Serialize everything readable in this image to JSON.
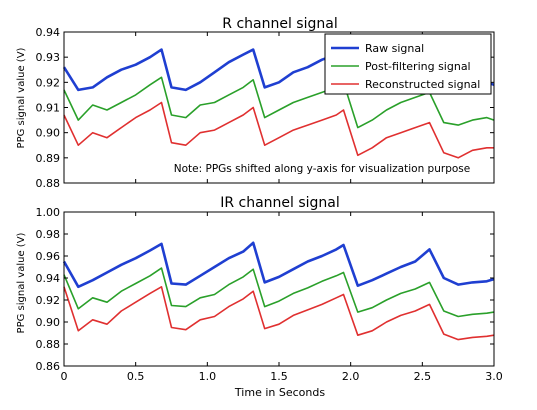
{
  "chart_data": [
    {
      "type": "line",
      "title": "R channel signal",
      "ylabel": "PPG signal value (V)",
      "xlabel": "",
      "xlim": [
        0,
        3.0
      ],
      "ylim": [
        0.88,
        0.94
      ],
      "yticks": [
        "0.88",
        "0.89",
        "0.90",
        "0.91",
        "0.92",
        "0.93",
        "0.94"
      ],
      "xticks": [],
      "grid": false,
      "legend_position": "top-right",
      "note": "Note: PPGs shifted along y-axis for visualization purpose",
      "x": [
        0.0,
        0.1,
        0.2,
        0.3,
        0.4,
        0.5,
        0.6,
        0.68,
        0.75,
        0.85,
        0.95,
        1.05,
        1.15,
        1.25,
        1.32,
        1.4,
        1.5,
        1.6,
        1.7,
        1.8,
        1.9,
        1.95,
        2.05,
        2.15,
        2.25,
        2.35,
        2.45,
        2.55,
        2.65,
        2.75,
        2.85,
        2.95,
        3.0
      ],
      "series": [
        {
          "name": "Raw signal",
          "color": "#1f3fd1",
          "values": [
            0.926,
            0.917,
            0.918,
            0.922,
            0.925,
            0.927,
            0.93,
            0.933,
            0.918,
            0.917,
            0.92,
            0.924,
            0.928,
            0.931,
            0.933,
            0.918,
            0.92,
            0.924,
            0.926,
            0.929,
            0.931,
            0.932,
            0.917,
            0.919,
            0.923,
            0.926,
            0.928,
            0.93,
            0.918,
            0.917,
            0.919,
            0.92,
            0.919
          ]
        },
        {
          "name": "Post-filtering signal",
          "color": "#2aa02a",
          "values": [
            0.917,
            0.905,
            0.911,
            0.909,
            0.912,
            0.915,
            0.919,
            0.922,
            0.907,
            0.906,
            0.911,
            0.912,
            0.915,
            0.918,
            0.921,
            0.906,
            0.909,
            0.912,
            0.914,
            0.916,
            0.918,
            0.92,
            0.902,
            0.905,
            0.909,
            0.912,
            0.914,
            0.916,
            0.904,
            0.903,
            0.905,
            0.906,
            0.905
          ]
        },
        {
          "name": "Reconstructed signal",
          "color": "#e03030",
          "values": [
            0.907,
            0.895,
            0.9,
            0.898,
            0.902,
            0.906,
            0.909,
            0.912,
            0.896,
            0.895,
            0.9,
            0.901,
            0.904,
            0.907,
            0.91,
            0.895,
            0.898,
            0.901,
            0.903,
            0.905,
            0.907,
            0.909,
            0.891,
            0.894,
            0.898,
            0.9,
            0.902,
            0.904,
            0.892,
            0.89,
            0.893,
            0.894,
            0.894
          ]
        }
      ]
    },
    {
      "type": "line",
      "title": "IR channel signal",
      "ylabel": "PPG signal value (V)",
      "xlabel": "Time in Seconds",
      "xlim": [
        0,
        3.0
      ],
      "ylim": [
        0.86,
        1.0
      ],
      "yticks": [
        "0.86",
        "0.88",
        "0.90",
        "0.92",
        "0.94",
        "0.96",
        "0.98",
        "1.00"
      ],
      "xticks": [
        "0",
        "0.5",
        "1.0",
        "1.5",
        "2.0",
        "2.5",
        "3.0"
      ],
      "grid": false,
      "x": [
        0.0,
        0.1,
        0.2,
        0.3,
        0.4,
        0.5,
        0.6,
        0.68,
        0.75,
        0.85,
        0.95,
        1.05,
        1.15,
        1.25,
        1.32,
        1.4,
        1.5,
        1.6,
        1.7,
        1.8,
        1.9,
        1.95,
        2.05,
        2.15,
        2.25,
        2.35,
        2.45,
        2.55,
        2.65,
        2.75,
        2.85,
        2.95,
        3.0
      ],
      "series": [
        {
          "name": "Raw signal",
          "color": "#1f3fd1",
          "values": [
            0.955,
            0.932,
            0.938,
            0.945,
            0.952,
            0.958,
            0.965,
            0.971,
            0.935,
            0.934,
            0.942,
            0.95,
            0.958,
            0.964,
            0.972,
            0.936,
            0.941,
            0.948,
            0.955,
            0.96,
            0.966,
            0.97,
            0.933,
            0.938,
            0.944,
            0.95,
            0.955,
            0.966,
            0.94,
            0.934,
            0.936,
            0.937,
            0.939
          ]
        },
        {
          "name": "Post-filtering signal",
          "color": "#2aa02a",
          "values": [
            0.943,
            0.912,
            0.922,
            0.918,
            0.928,
            0.935,
            0.942,
            0.949,
            0.915,
            0.914,
            0.922,
            0.925,
            0.934,
            0.941,
            0.948,
            0.914,
            0.919,
            0.926,
            0.931,
            0.937,
            0.942,
            0.945,
            0.909,
            0.913,
            0.92,
            0.926,
            0.93,
            0.936,
            0.91,
            0.905,
            0.907,
            0.908,
            0.909
          ]
        },
        {
          "name": "Reconstructed signal",
          "color": "#e03030",
          "values": [
            0.932,
            0.892,
            0.902,
            0.898,
            0.91,
            0.918,
            0.926,
            0.932,
            0.895,
            0.893,
            0.902,
            0.905,
            0.914,
            0.921,
            0.928,
            0.894,
            0.898,
            0.906,
            0.911,
            0.916,
            0.922,
            0.925,
            0.888,
            0.892,
            0.9,
            0.906,
            0.91,
            0.916,
            0.889,
            0.884,
            0.886,
            0.887,
            0.888
          ]
        }
      ]
    }
  ]
}
